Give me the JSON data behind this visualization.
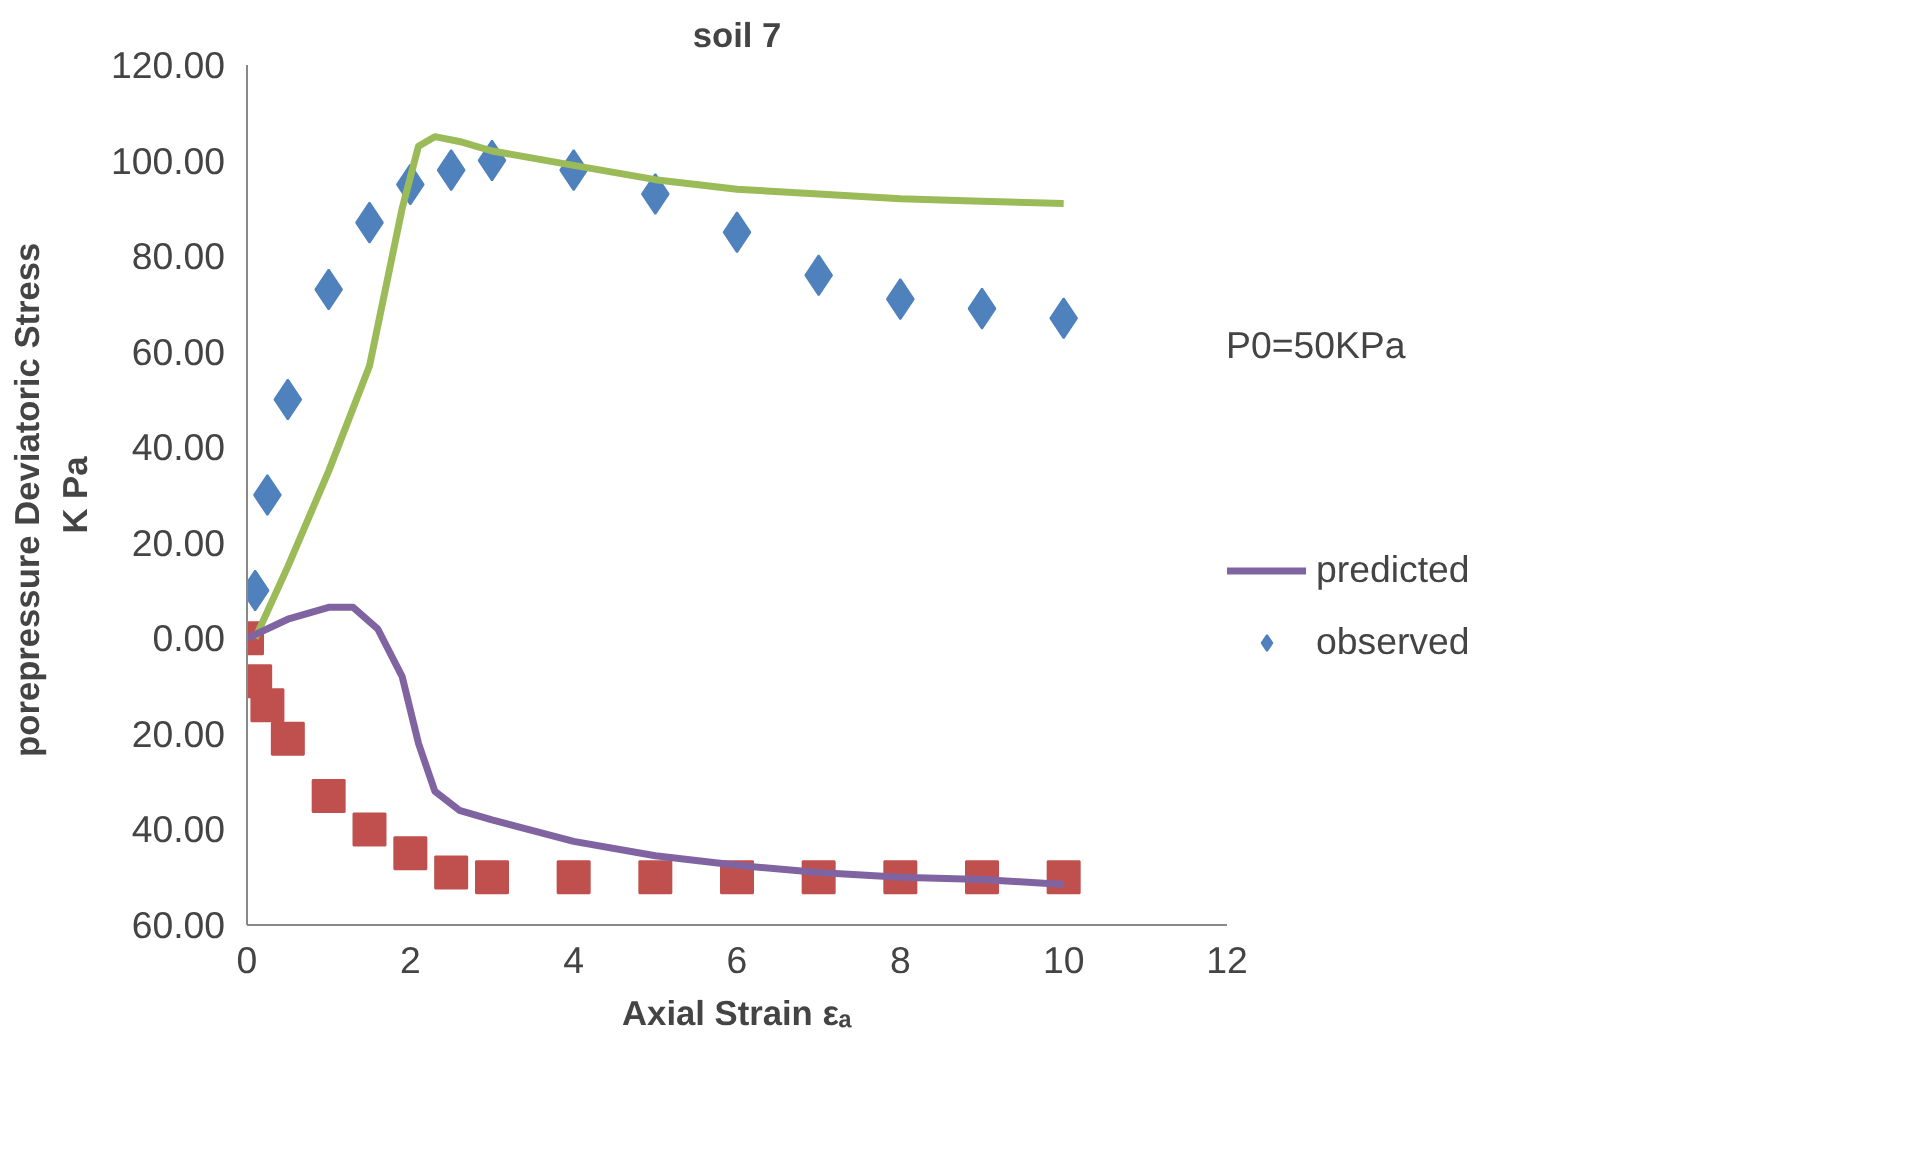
{
  "chart_data": {
    "type": "line",
    "title": "soil 7",
    "xlabel": "Axial Strain εₐ",
    "ylabel": "porepressure  Deviatoric Stress\nK Pa",
    "annotations": [
      "P0=50KPa"
    ],
    "xlim": [
      0,
      12
    ],
    "xticks": [
      0,
      2,
      4,
      6,
      8,
      10,
      12
    ],
    "ylim": [
      -60,
      120
    ],
    "yticks": [
      {
        "value": 120,
        "label": "120.00"
      },
      {
        "value": 100,
        "label": "100.00"
      },
      {
        "value": 80,
        "label": "80.00"
      },
      {
        "value": 60,
        "label": "60.00"
      },
      {
        "value": 40,
        "label": "40.00"
      },
      {
        "value": 20,
        "label": "20.00"
      },
      {
        "value": 0,
        "label": "0.00"
      },
      {
        "value": -20,
        "label": "20.00"
      },
      {
        "value": -40,
        "label": "40.00"
      },
      {
        "value": -60,
        "label": "60.00"
      }
    ],
    "grid": false,
    "legend": "right",
    "series": [
      {
        "color": "#9bbb59",
        "x": [
          0.1,
          0.5,
          1,
          1.5,
          1.9,
          2.1,
          2.3,
          2.6,
          3,
          4,
          5,
          6,
          7,
          8,
          9,
          10
        ],
        "values": [
          0,
          15,
          35,
          57,
          90,
          103,
          105,
          104,
          102,
          99,
          96,
          94,
          93,
          92,
          91.5,
          91
        ]
      },
      {
        "type": "scatter",
        "marker": "diamond",
        "name": "observed",
        "color": "#4f81bd",
        "x": [
          0.1,
          0.25,
          0.5,
          1,
          1.5,
          2,
          2.5,
          3,
          4,
          5,
          6,
          7,
          8,
          9,
          10
        ],
        "values": [
          10,
          30,
          50,
          73,
          87,
          95,
          98,
          100,
          98,
          93,
          85,
          76,
          71,
          69,
          67
        ]
      },
      {
        "name": "predicted",
        "color": "#8064a2",
        "x": [
          0,
          0.5,
          1,
          1.3,
          1.6,
          1.9,
          2.1,
          2.3,
          2.6,
          3,
          4,
          5,
          6,
          7,
          8,
          9,
          10
        ],
        "values": [
          0,
          4,
          6.5,
          6.5,
          2,
          -8,
          -22,
          -32,
          -36,
          -38,
          -42.5,
          -45.5,
          -47.5,
          -49,
          -50,
          -50.5,
          -51.5
        ]
      },
      {
        "type": "scatter",
        "marker": "square",
        "color": "#c0504d",
        "x": [
          0,
          0.1,
          0.25,
          0.5,
          1,
          1.5,
          2,
          2.5,
          3,
          4,
          5,
          6,
          7,
          8,
          9,
          10
        ],
        "values": [
          0,
          -9,
          -14,
          -21,
          -33,
          -40,
          -45,
          -49,
          -50,
          -50,
          -50,
          -50,
          -50,
          -50,
          -50,
          -50
        ]
      }
    ]
  }
}
